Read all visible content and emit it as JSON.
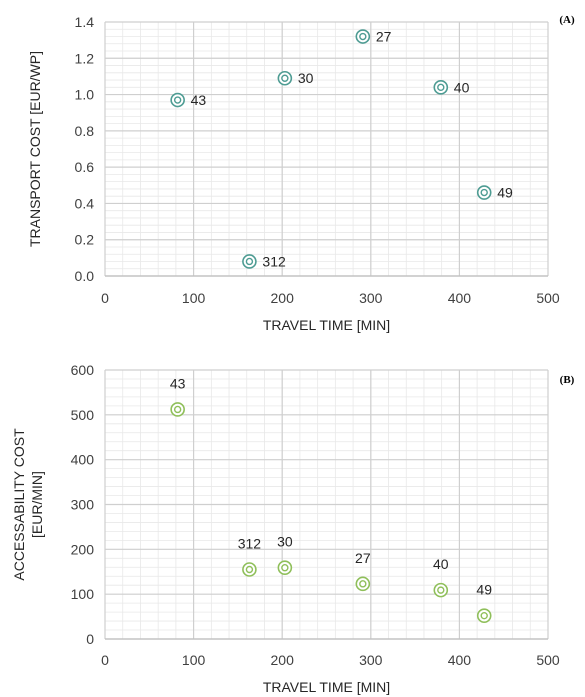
{
  "chart_data": [
    {
      "type": "scatter",
      "panel_label": "(A)",
      "xlabel": "TRAVEL TIME [MIN]",
      "ylabel": "TRANSPORT COST [EUR/WP]",
      "xlim": [
        0,
        500
      ],
      "ylim": [
        0,
        1.4
      ],
      "x_ticks": [
        "0",
        "100",
        "200",
        "300",
        "400",
        "500"
      ],
      "y_ticks": [
        "0.0",
        "0.2",
        "0.4",
        "0.6",
        "0.8",
        "1.0",
        "1.2",
        "1.4"
      ],
      "grid": true,
      "label_position": "right",
      "marker_color": "#4e9c93",
      "points": [
        {
          "x": 82,
          "y": 0.97,
          "label": "43"
        },
        {
          "x": 203,
          "y": 1.09,
          "label": "30"
        },
        {
          "x": 291,
          "y": 1.32,
          "label": "27"
        },
        {
          "x": 379,
          "y": 1.04,
          "label": "40"
        },
        {
          "x": 428,
          "y": 0.46,
          "label": "49"
        },
        {
          "x": 163,
          "y": 0.08,
          "label": "312"
        }
      ]
    },
    {
      "type": "scatter",
      "panel_label": "(B)",
      "xlabel": "TRAVEL TIME [MIN]",
      "ylabel": [
        "ACCESSABILITY  COST",
        "[EUR/MIN]"
      ],
      "xlim": [
        0,
        500
      ],
      "ylim": [
        0,
        600
      ],
      "x_ticks": [
        "0",
        "100",
        "200",
        "300",
        "400",
        "500"
      ],
      "y_ticks": [
        "0",
        "100",
        "200",
        "300",
        "400",
        "500",
        "600"
      ],
      "grid": true,
      "label_position": "above",
      "marker_color": "#8fbf5a",
      "points": [
        {
          "x": 82,
          "y": 512,
          "label": "43"
        },
        {
          "x": 163,
          "y": 155,
          "label": "312"
        },
        {
          "x": 203,
          "y": 159,
          "label": "30"
        },
        {
          "x": 291,
          "y": 123,
          "label": "27"
        },
        {
          "x": 379,
          "y": 109,
          "label": "40"
        },
        {
          "x": 428,
          "y": 52,
          "label": "49"
        }
      ]
    }
  ]
}
